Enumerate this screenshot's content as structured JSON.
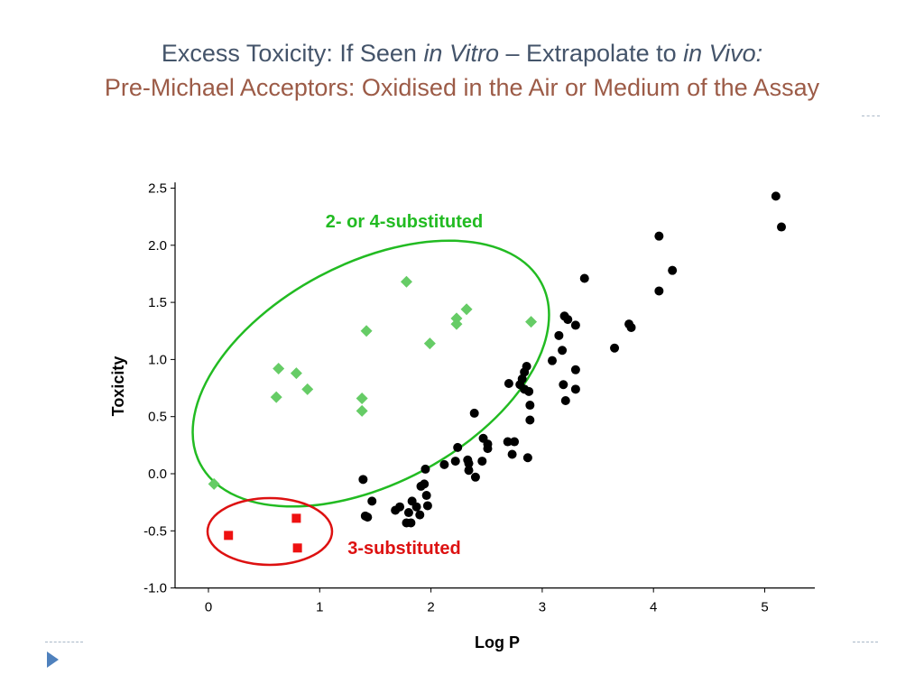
{
  "slide": {
    "title_part1": "Excess Toxicity: If Seen ",
    "title_italic1": "in Vitro",
    "title_part2": " – Extrapolate to ",
    "title_italic2": "in Vivo:",
    "subtitle": "Pre-Michael Acceptors: Oxidised in the Air or Medium of the Assay",
    "title_color": "#44546a",
    "subtitle_color": "#9c5b47",
    "nav_icon": "play-triangle-icon"
  },
  "chart_data": {
    "type": "scatter",
    "xlabel": "Log P",
    "ylabel": "Toxicity",
    "xlim": [
      -0.3,
      5.45
    ],
    "ylim": [
      -1.0,
      2.55
    ],
    "xticks": [
      0,
      1,
      2,
      3,
      4,
      5
    ],
    "xtick_labels": [
      "0",
      "1",
      "2",
      "3",
      "4",
      "5"
    ],
    "yticks": [
      2.5,
      2.0,
      1.5,
      1.0,
      0.5,
      0.0,
      -0.5,
      -1.0
    ],
    "ytick_labels": [
      "2.5",
      "2.0",
      "1.5",
      "1.0",
      "0.5",
      "0.0",
      "-0.5",
      "-1.0"
    ],
    "grid": false,
    "annotations": [
      {
        "text": "2- or 4-substituted",
        "color": "#22bb22"
      },
      {
        "text": "3-substituted",
        "color": "#dd1111"
      }
    ],
    "series": [
      {
        "marker": "circle",
        "color": "#000000",
        "points": [
          [
            5.1,
            2.43
          ],
          [
            5.15,
            2.16
          ],
          [
            4.05,
            2.08
          ],
          [
            4.17,
            1.78
          ],
          [
            4.05,
            1.6
          ],
          [
            3.38,
            1.71
          ],
          [
            3.78,
            1.31
          ],
          [
            3.8,
            1.28
          ],
          [
            3.65,
            1.1
          ],
          [
            3.2,
            1.38
          ],
          [
            3.23,
            1.35
          ],
          [
            3.3,
            1.3
          ],
          [
            3.15,
            1.21
          ],
          [
            3.18,
            1.08
          ],
          [
            3.09,
            0.99
          ],
          [
            3.3,
            0.91
          ],
          [
            3.19,
            0.78
          ],
          [
            3.3,
            0.74
          ],
          [
            3.21,
            0.64
          ],
          [
            2.86,
            0.94
          ],
          [
            2.84,
            0.89
          ],
          [
            2.82,
            0.83
          ],
          [
            2.7,
            0.79
          ],
          [
            2.8,
            0.78
          ],
          [
            2.84,
            0.74
          ],
          [
            2.88,
            0.72
          ],
          [
            2.89,
            0.6
          ],
          [
            2.89,
            0.47
          ],
          [
            2.69,
            0.28
          ],
          [
            2.75,
            0.28
          ],
          [
            2.73,
            0.17
          ],
          [
            2.87,
            0.14
          ],
          [
            2.39,
            0.53
          ],
          [
            2.47,
            0.31
          ],
          [
            2.51,
            0.26
          ],
          [
            2.51,
            0.22
          ],
          [
            2.24,
            0.23
          ],
          [
            2.33,
            0.12
          ],
          [
            2.34,
            0.09
          ],
          [
            2.22,
            0.11
          ],
          [
            2.12,
            0.08
          ],
          [
            2.46,
            0.11
          ],
          [
            2.34,
            0.03
          ],
          [
            2.4,
            -0.03
          ],
          [
            1.95,
            0.04
          ],
          [
            1.39,
            -0.05
          ],
          [
            1.94,
            -0.09
          ],
          [
            1.91,
            -0.11
          ],
          [
            1.96,
            -0.19
          ],
          [
            1.47,
            -0.24
          ],
          [
            1.83,
            -0.24
          ],
          [
            1.97,
            -0.28
          ],
          [
            1.87,
            -0.29
          ],
          [
            1.72,
            -0.29
          ],
          [
            1.68,
            -0.32
          ],
          [
            1.8,
            -0.34
          ],
          [
            1.9,
            -0.36
          ],
          [
            1.41,
            -0.37
          ],
          [
            1.43,
            -0.38
          ],
          [
            1.82,
            -0.43
          ],
          [
            1.78,
            -0.43
          ]
        ]
      },
      {
        "marker": "diamond",
        "color": "#66cc66",
        "points": [
          [
            1.78,
            1.68
          ],
          [
            2.32,
            1.44
          ],
          [
            2.23,
            1.36
          ],
          [
            2.23,
            1.31
          ],
          [
            2.9,
            1.33
          ],
          [
            1.42,
            1.25
          ],
          [
            1.99,
            1.14
          ],
          [
            0.63,
            0.92
          ],
          [
            0.79,
            0.88
          ],
          [
            0.89,
            0.74
          ],
          [
            0.61,
            0.67
          ],
          [
            1.38,
            0.66
          ],
          [
            1.38,
            0.55
          ],
          [
            0.05,
            -0.09
          ]
        ]
      },
      {
        "marker": "square",
        "color": "#ee1111",
        "points": [
          [
            0.18,
            -0.54
          ],
          [
            0.79,
            -0.39
          ],
          [
            0.8,
            -0.65
          ]
        ]
      }
    ]
  }
}
